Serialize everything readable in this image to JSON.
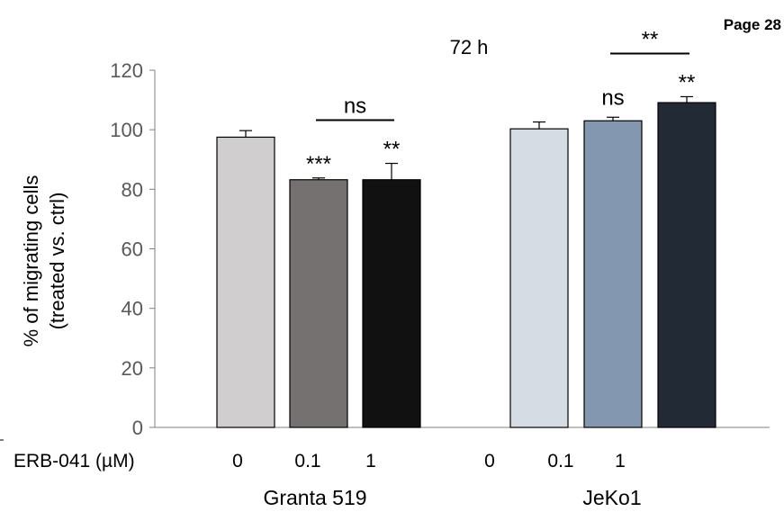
{
  "page_label": "Page 28",
  "chart_data": {
    "type": "bar",
    "title": "72 h",
    "ylabel_line1": "% of migrating cells",
    "ylabel_line2": "(treated vs. ctrl)",
    "ylim": [
      0,
      120
    ],
    "yticks": [
      0,
      20,
      40,
      60,
      80,
      100,
      120
    ],
    "grid": false,
    "treatment_label": "ERB-041 (µM)",
    "groups": [
      {
        "name": "Granta 519",
        "bars": [
          {
            "dose": "0",
            "value": 97.5,
            "error": 2.2,
            "color": "#d0cece",
            "sig": ""
          },
          {
            "dose": "0.1",
            "value": 83.2,
            "error": 0.6,
            "color": "#767171",
            "sig": "***"
          },
          {
            "dose": "1",
            "value": 83.2,
            "error": 5.5,
            "color": "#111111",
            "sig": "**"
          }
        ],
        "bracket": {
          "from": 1,
          "to": 2,
          "label": "ns"
        }
      },
      {
        "name": "JeKo1",
        "bars": [
          {
            "dose": "0",
            "value": 100.3,
            "error": 2.3,
            "color": "#d6dce4",
            "sig": ""
          },
          {
            "dose": "0.1",
            "value": 103.0,
            "error": 1.2,
            "color": "#8497b0",
            "sig": "ns"
          },
          {
            "dose": "1",
            "value": 109.1,
            "error": 2.0,
            "color": "#222a35",
            "sig": "**"
          }
        ],
        "bracket": {
          "from": 1,
          "to": 2,
          "label": "**"
        }
      }
    ]
  }
}
